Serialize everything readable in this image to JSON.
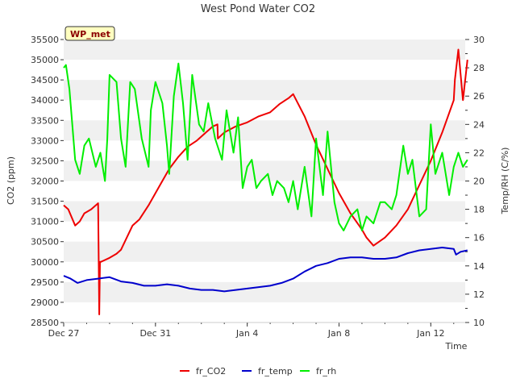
{
  "chart_data": {
    "type": "line",
    "title": "West Pond Water CO2",
    "station_label": "WP_met",
    "xlabel": "Time",
    "ylabel_left": "CO2 (ppm)",
    "ylabel_right": "Temp/RH (C/%)",
    "x_tick_labels": [
      "Dec 27",
      "Dec 31",
      "Jan 4",
      "Jan 8",
      "Jan 12"
    ],
    "x_tick_days": [
      0,
      4,
      8,
      12,
      16
    ],
    "xlim_days": [
      0,
      17.5
    ],
    "ylim_left": [
      28500,
      35500
    ],
    "yticks_left": [
      28500,
      29000,
      29500,
      30000,
      30500,
      31000,
      31500,
      32000,
      32500,
      33000,
      33500,
      34000,
      34500,
      35000,
      35500
    ],
    "ylim_right": [
      10,
      30
    ],
    "yticks_right": [
      10,
      12,
      14,
      16,
      18,
      20,
      22,
      24,
      26,
      28,
      30
    ],
    "grid": "horizontal bands",
    "legend_position": "bottom",
    "colors": {
      "fr_CO2": "#ee0000",
      "fr_temp": "#0000cc",
      "fr_rh": "#00ee00",
      "band": "#f0f0f0",
      "badge_bg": "#ffffc0"
    },
    "series": [
      {
        "name": "fr_CO2",
        "axis": "left",
        "x": [
          0.0,
          0.2,
          0.5,
          0.7,
          0.9,
          1.2,
          1.5,
          1.55,
          1.58,
          1.62,
          2.0,
          2.3,
          2.5,
          3.0,
          3.3,
          3.7,
          4.2,
          4.6,
          5.0,
          5.4,
          5.8,
          6.2,
          6.5,
          6.7,
          6.72,
          7.0,
          7.5,
          8.0,
          8.5,
          9.0,
          9.4,
          9.8,
          10.0,
          10.5,
          11.0,
          11.5,
          12.0,
          12.5,
          13.0,
          13.2,
          13.5,
          14.0,
          14.5,
          15.0,
          15.5,
          16.0,
          16.5,
          17.0,
          17.05,
          17.2,
          17.4,
          17.6
        ],
        "values": [
          31400,
          31300,
          30900,
          31000,
          31200,
          31300,
          31450,
          28700,
          30000,
          30000,
          30100,
          30200,
          30300,
          30900,
          31050,
          31400,
          31900,
          32300,
          32600,
          32850,
          33000,
          33200,
          33350,
          33400,
          33050,
          33200,
          33350,
          33450,
          33600,
          33700,
          33900,
          34050,
          34150,
          33600,
          32900,
          32300,
          31700,
          31200,
          30800,
          30600,
          30400,
          30600,
          30900,
          31300,
          31900,
          32500,
          33200,
          34000,
          34500,
          35250,
          34000,
          35000
        ]
      },
      {
        "name": "fr_temp",
        "axis": "right",
        "x": [
          0.0,
          0.3,
          0.6,
          1.0,
          1.5,
          2.0,
          2.5,
          3.0,
          3.5,
          4.0,
          4.5,
          5.0,
          5.5,
          6.0,
          6.5,
          7.0,
          7.5,
          8.0,
          8.5,
          9.0,
          9.5,
          10.0,
          10.5,
          11.0,
          11.5,
          12.0,
          12.5,
          13.0,
          13.5,
          14.0,
          14.5,
          15.0,
          15.5,
          16.0,
          16.5,
          17.0,
          17.1,
          17.3,
          17.6
        ],
        "values": [
          13.3,
          13.1,
          12.8,
          13.0,
          13.1,
          13.2,
          12.9,
          12.8,
          12.6,
          12.6,
          12.7,
          12.6,
          12.4,
          12.3,
          12.3,
          12.2,
          12.3,
          12.4,
          12.5,
          12.6,
          12.8,
          13.1,
          13.6,
          14.0,
          14.2,
          14.5,
          14.6,
          14.6,
          14.5,
          14.5,
          14.6,
          14.9,
          15.1,
          15.2,
          15.3,
          15.2,
          14.8,
          15.0,
          15.1
        ]
      },
      {
        "name": "fr_rh",
        "axis": "right",
        "x": [
          0.0,
          0.1,
          0.25,
          0.5,
          0.7,
          0.9,
          1.1,
          1.4,
          1.6,
          1.8,
          1.9,
          2.0,
          2.3,
          2.5,
          2.7,
          2.9,
          3.1,
          3.4,
          3.7,
          3.8,
          4.0,
          4.3,
          4.5,
          4.6,
          4.8,
          5.0,
          5.2,
          5.4,
          5.6,
          5.9,
          6.1,
          6.3,
          6.6,
          6.9,
          7.1,
          7.4,
          7.6,
          7.8,
          8.0,
          8.2,
          8.4,
          8.6,
          8.9,
          9.1,
          9.3,
          9.6,
          9.8,
          10.0,
          10.2,
          10.5,
          10.8,
          11.0,
          11.3,
          11.5,
          11.8,
          12.0,
          12.2,
          12.5,
          12.8,
          13.0,
          13.2,
          13.5,
          13.8,
          14.0,
          14.3,
          14.5,
          14.8,
          15.0,
          15.2,
          15.5,
          15.8,
          16.0,
          16.2,
          16.5,
          16.8,
          17.0,
          17.2,
          17.4,
          17.6
        ],
        "values": [
          28.0,
          28.2,
          26.5,
          21.5,
          20.5,
          22.5,
          23.0,
          21.0,
          22.0,
          20.0,
          23.0,
          27.5,
          27.0,
          23.0,
          21.0,
          27.0,
          26.5,
          23.0,
          21.0,
          25.0,
          27.0,
          25.5,
          22.5,
          20.5,
          26.0,
          28.3,
          25.5,
          21.5,
          27.5,
          24.0,
          23.5,
          25.5,
          23.0,
          21.5,
          25.0,
          22.0,
          24.5,
          19.5,
          21.0,
          21.5,
          19.5,
          20.0,
          20.5,
          19.0,
          20.0,
          19.5,
          18.5,
          20.0,
          18.0,
          21.0,
          17.5,
          23.0,
          19.0,
          23.5,
          18.5,
          17.0,
          16.5,
          17.5,
          18.0,
          16.5,
          17.5,
          17.0,
          18.5,
          18.5,
          18.0,
          19.0,
          22.5,
          20.5,
          21.5,
          17.5,
          18.0,
          24.0,
          20.5,
          22.0,
          19.0,
          21.0,
          22.0,
          21.0,
          21.5
        ]
      }
    ]
  }
}
